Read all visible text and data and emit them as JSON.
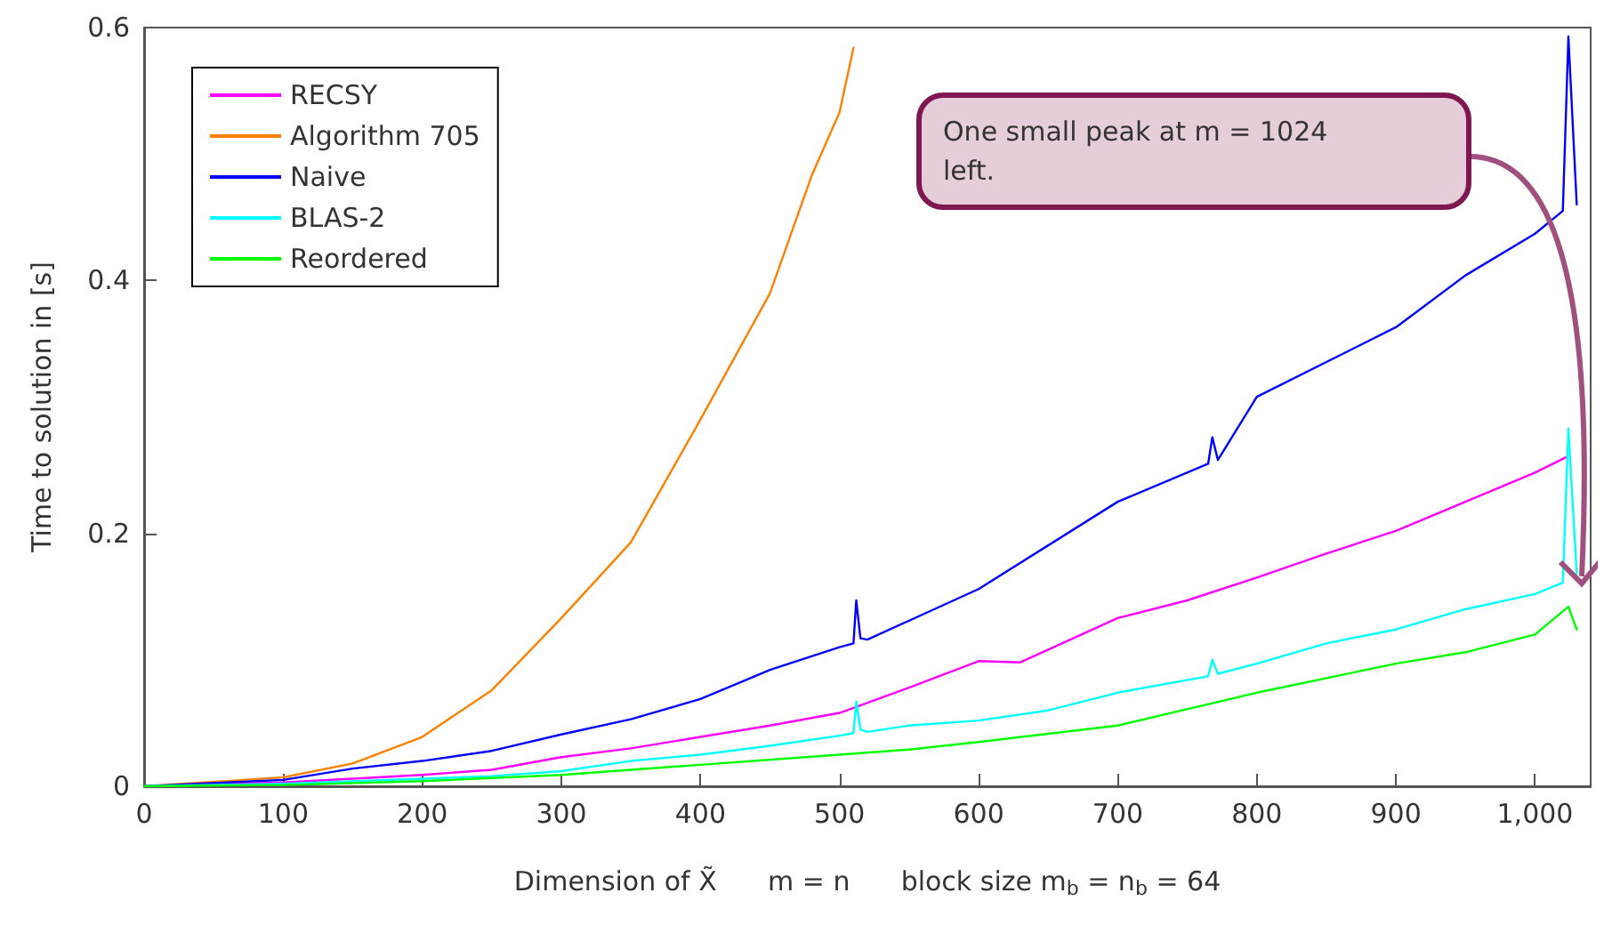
{
  "chart_data": {
    "type": "line",
    "xlabel": "Dimension of X̃      m = n      block size m$_{b}$ = n$_{b}$ = 64",
    "ylabel": "Time to solution in [s]",
    "xlim": [
      0,
      1040
    ],
    "xticks": [
      0,
      100,
      200,
      300,
      400,
      500,
      600,
      700,
      800,
      900,
      {
        "value": 1000,
        "label": "1,000"
      }
    ],
    "ylim": [
      0,
      0.6
    ],
    "yticks": [
      0,
      0.2,
      0.4,
      0.6
    ],
    "grid": false,
    "legend": "top left",
    "marker": "none",
    "line_style": "solid",
    "annotations": [
      "One small peak at m = 1024 left."
    ],
    "series": [
      {
        "name": "RECSY",
        "color": "#ff00ff",
        "x": [
          0,
          100,
          150,
          200,
          250,
          300,
          350,
          400,
          450,
          500,
          550,
          600,
          630,
          700,
          750,
          800,
          850,
          900,
          950,
          1000,
          1022
        ],
        "values": [
          0,
          0.003,
          0.006,
          0.009,
          0.013,
          0.023,
          0.03,
          0.039,
          0.048,
          0.058,
          0.078,
          0.099,
          0.098,
          0.133,
          0.147,
          0.165,
          0.184,
          0.202,
          0.225,
          0.248,
          0.26
        ]
      },
      {
        "name": "Algorithm 705",
        "color": "#ff8000",
        "x": [
          0,
          100,
          150,
          200,
          250,
          300,
          350,
          400,
          450,
          480,
          500,
          510
        ],
        "values": [
          0,
          0.007,
          0.018,
          0.039,
          0.076,
          0.133,
          0.193,
          0.29,
          0.39,
          0.483,
          0.533,
          0.584
        ]
      },
      {
        "name": "Naive",
        "color": "#0000ff",
        "x": [
          0,
          100,
          150,
          200,
          250,
          300,
          350,
          400,
          450,
          500,
          510,
          512,
          515,
          520,
          600,
          700,
          765,
          768,
          772,
          800,
          900,
          950,
          1000,
          1020,
          1024,
          1030
        ],
        "values": [
          0,
          0.005,
          0.014,
          0.02,
          0.028,
          0.041,
          0.053,
          0.069,
          0.092,
          0.11,
          0.113,
          0.147,
          0.117,
          0.116,
          0.156,
          0.225,
          0.255,
          0.276,
          0.258,
          0.308,
          0.363,
          0.404,
          0.437,
          0.455,
          0.593,
          0.46
        ]
      },
      {
        "name": "BLAS-2",
        "color": "#00ffff",
        "x": [
          0,
          100,
          200,
          250,
          300,
          350,
          400,
          450,
          500,
          510,
          512,
          515,
          520,
          550,
          600,
          650,
          700,
          765,
          768,
          772,
          800,
          850,
          900,
          950,
          1000,
          1020,
          1024,
          1030
        ],
        "values": [
          0,
          0.002,
          0.006,
          0.008,
          0.012,
          0.02,
          0.025,
          0.032,
          0.04,
          0.042,
          0.067,
          0.045,
          0.043,
          0.048,
          0.052,
          0.06,
          0.074,
          0.087,
          0.1,
          0.089,
          0.097,
          0.113,
          0.124,
          0.14,
          0.152,
          0.161,
          0.283,
          0.168
        ]
      },
      {
        "name": "Reordered",
        "color": "#00ff00",
        "x": [
          0,
          100,
          200,
          300,
          400,
          500,
          550,
          600,
          700,
          800,
          900,
          950,
          1000,
          1024,
          1030
        ],
        "values": [
          0,
          0.001,
          0.004,
          0.009,
          0.017,
          0.025,
          0.029,
          0.035,
          0.048,
          0.074,
          0.097,
          0.106,
          0.12,
          0.142,
          0.124
        ]
      }
    ]
  }
}
